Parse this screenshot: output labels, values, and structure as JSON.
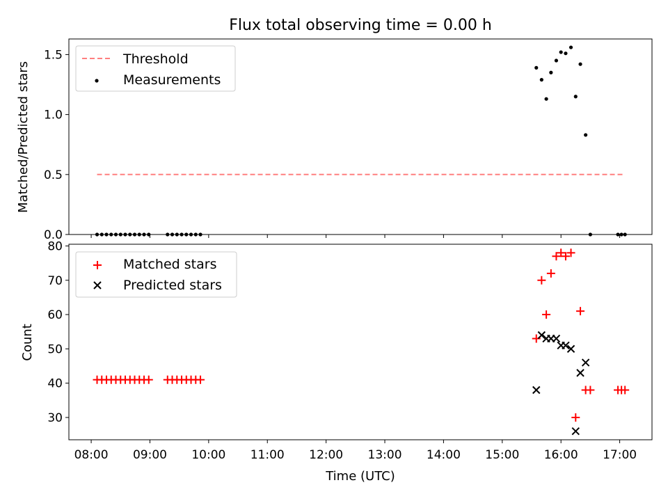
{
  "chart_data": [
    {
      "type": "scatter",
      "title": "Flux total observing time = 0.00 h",
      "xlabel": "",
      "ylabel": "Matched/Predicted stars",
      "ylim": [
        0,
        1.63
      ],
      "yticks": [
        0.0,
        0.5,
        1.0,
        1.5
      ],
      "ytick_labels": [
        "0.0",
        "0.5",
        "1.0",
        "1.5"
      ],
      "x_unit": "hours UTC",
      "xlim": [
        7.62,
        17.55
      ],
      "legend_position": "top-left",
      "legend": [
        {
          "label": "Threshold",
          "color": "#ff7f7f",
          "marker": "dashed-line"
        },
        {
          "label": "Measurements",
          "color": "#000000",
          "marker": "dot"
        }
      ],
      "threshold": {
        "y": 0.5,
        "x": [
          8.1,
          17.05
        ],
        "color": "#ff7f7f"
      },
      "series": [
        {
          "name": "Measurements",
          "color": "#000000",
          "marker": "dot",
          "x": [
            8.1,
            8.18,
            8.26,
            8.34,
            8.42,
            8.5,
            8.58,
            8.66,
            8.74,
            8.82,
            8.9,
            8.98,
            9.3,
            9.38,
            9.46,
            9.54,
            9.62,
            9.7,
            9.78,
            9.86,
            15.58,
            15.67,
            15.75,
            15.83,
            15.92,
            16.0,
            16.08,
            16.17,
            16.25,
            16.33,
            16.42,
            16.5,
            16.97,
            17.03,
            17.09
          ],
          "y": [
            0,
            0,
            0,
            0,
            0,
            0,
            0,
            0,
            0,
            0,
            0,
            0,
            0,
            0,
            0,
            0,
            0,
            0,
            0,
            0,
            1.39,
            1.29,
            1.13,
            1.35,
            1.45,
            1.52,
            1.51,
            1.56,
            1.15,
            1.42,
            0.83,
            0,
            0,
            0,
            0
          ]
        }
      ]
    },
    {
      "type": "scatter",
      "title": "",
      "xlabel": "Time (UTC)",
      "ylabel": "Count",
      "ylim": [
        23.5,
        80.5
      ],
      "yticks": [
        30,
        40,
        50,
        60,
        70,
        80
      ],
      "ytick_labels": [
        "30",
        "40",
        "50",
        "60",
        "70",
        "80"
      ],
      "x_unit": "hours UTC",
      "xlim": [
        7.62,
        17.55
      ],
      "xticks": [
        8,
        9,
        10,
        11,
        12,
        13,
        14,
        15,
        16,
        17
      ],
      "xtick_labels": [
        "08:00",
        "09:00",
        "10:00",
        "11:00",
        "12:00",
        "13:00",
        "14:00",
        "15:00",
        "16:00",
        "17:00"
      ],
      "legend_position": "top-left",
      "legend": [
        {
          "label": "Matched stars",
          "color": "#ff0000",
          "marker": "plus"
        },
        {
          "label": "Predicted stars",
          "color": "#000000",
          "marker": "x"
        }
      ],
      "series": [
        {
          "name": "Matched stars",
          "color": "#ff0000",
          "marker": "plus",
          "x": [
            8.1,
            8.18,
            8.26,
            8.34,
            8.42,
            8.5,
            8.58,
            8.66,
            8.74,
            8.82,
            8.9,
            8.98,
            9.3,
            9.38,
            9.46,
            9.54,
            9.62,
            9.7,
            9.78,
            9.86,
            15.58,
            15.67,
            15.75,
            15.83,
            15.92,
            16.0,
            16.08,
            16.17,
            16.25,
            16.33,
            16.42,
            16.5,
            16.97,
            17.03,
            17.09
          ],
          "y": [
            41,
            41,
            41,
            41,
            41,
            41,
            41,
            41,
            41,
            41,
            41,
            41,
            41,
            41,
            41,
            41,
            41,
            41,
            41,
            41,
            53,
            70,
            60,
            72,
            77,
            78,
            77,
            78,
            30,
            61,
            38,
            38,
            38,
            38,
            38
          ]
        },
        {
          "name": "Predicted stars",
          "color": "#000000",
          "marker": "x",
          "x": [
            15.58,
            15.67,
            15.75,
            15.83,
            15.92,
            16.0,
            16.08,
            16.17,
            16.25,
            16.33,
            16.42
          ],
          "y": [
            38,
            54,
            53,
            53,
            53,
            51,
            51,
            50,
            26,
            43,
            46
          ]
        }
      ]
    }
  ]
}
